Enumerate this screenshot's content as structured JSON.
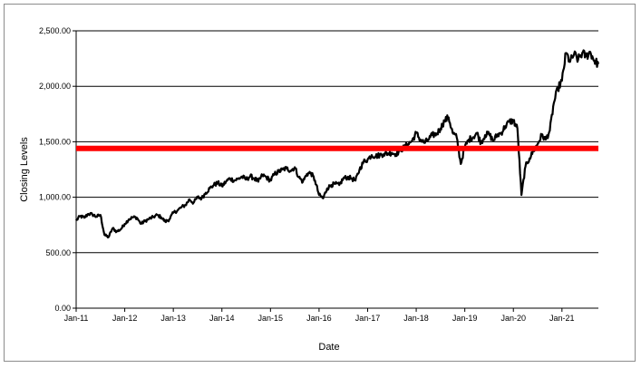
{
  "chart_data": {
    "type": "line",
    "title": "",
    "xlabel": "Date",
    "ylabel": "Closing Levels",
    "ylim": [
      0,
      2500
    ],
    "y_ticks": [
      {
        "value": 0,
        "label": "0.00"
      },
      {
        "value": 500,
        "label": "500.00"
      },
      {
        "value": 1000,
        "label": "1,000.00"
      },
      {
        "value": 1500,
        "label": "1,500.00"
      },
      {
        "value": 2000,
        "label": "2,000.00"
      },
      {
        "value": 2500,
        "label": "2,500.00"
      }
    ],
    "x_ticks": [
      "Jan-11",
      "Jan-12",
      "Jan-13",
      "Jan-14",
      "Jan-15",
      "Jan-16",
      "Jan-17",
      "Jan-18",
      "Jan-19",
      "Jan-20",
      "Jan-21"
    ],
    "x_range": [
      "2011-01",
      "2021-10"
    ],
    "grid": "horizontal",
    "legend": "none",
    "reference_line": {
      "value": 1440,
      "color": "#ff0000"
    },
    "series": [
      {
        "color": "#000000",
        "points": [
          [
            "2011-01",
            790
          ],
          [
            "2011-02",
            830
          ],
          [
            "2011-03",
            815
          ],
          [
            "2011-04",
            850
          ],
          [
            "2011-05",
            845
          ],
          [
            "2011-06",
            825
          ],
          [
            "2011-07",
            840
          ],
          [
            "2011-08",
            660
          ],
          [
            "2011-09",
            640
          ],
          [
            "2011-10",
            720
          ],
          [
            "2011-11",
            690
          ],
          [
            "2011-12",
            710
          ],
          [
            "2012-01",
            760
          ],
          [
            "2012-02",
            800
          ],
          [
            "2012-03",
            820
          ],
          [
            "2012-04",
            815
          ],
          [
            "2012-05",
            760
          ],
          [
            "2012-06",
            785
          ],
          [
            "2012-07",
            805
          ],
          [
            "2012-08",
            820
          ],
          [
            "2012-09",
            840
          ],
          [
            "2012-10",
            820
          ],
          [
            "2012-11",
            780
          ],
          [
            "2012-12",
            800
          ],
          [
            "2013-01",
            860
          ],
          [
            "2013-02",
            880
          ],
          [
            "2013-03",
            910
          ],
          [
            "2013-04",
            930
          ],
          [
            "2013-05",
            980
          ],
          [
            "2013-06",
            950
          ],
          [
            "2013-07",
            1000
          ],
          [
            "2013-08",
            990
          ],
          [
            "2013-09",
            1040
          ],
          [
            "2013-10",
            1080
          ],
          [
            "2013-11",
            1110
          ],
          [
            "2013-12",
            1130
          ],
          [
            "2014-01",
            1100
          ],
          [
            "2014-02",
            1140
          ],
          [
            "2014-03",
            1170
          ],
          [
            "2014-04",
            1150
          ],
          [
            "2014-05",
            1165
          ],
          [
            "2014-06",
            1185
          ],
          [
            "2014-07",
            1160
          ],
          [
            "2014-08",
            1190
          ],
          [
            "2014-09",
            1170
          ],
          [
            "2014-10",
            1140
          ],
          [
            "2014-11",
            1200
          ],
          [
            "2014-12",
            1180
          ],
          [
            "2015-01",
            1150
          ],
          [
            "2015-02",
            1210
          ],
          [
            "2015-03",
            1230
          ],
          [
            "2015-04",
            1250
          ],
          [
            "2015-05",
            1260
          ],
          [
            "2015-06",
            1240
          ],
          [
            "2015-07",
            1270
          ],
          [
            "2015-08",
            1180
          ],
          [
            "2015-09",
            1140
          ],
          [
            "2015-10",
            1210
          ],
          [
            "2015-11",
            1220
          ],
          [
            "2015-12",
            1150
          ],
          [
            "2016-01",
            1020
          ],
          [
            "2016-02",
            990
          ],
          [
            "2016-03",
            1080
          ],
          [
            "2016-04",
            1110
          ],
          [
            "2016-05",
            1120
          ],
          [
            "2016-06",
            1110
          ],
          [
            "2016-07",
            1170
          ],
          [
            "2016-08",
            1180
          ],
          [
            "2016-09",
            1170
          ],
          [
            "2016-10",
            1150
          ],
          [
            "2016-11",
            1250
          ],
          [
            "2016-12",
            1320
          ],
          [
            "2017-01",
            1340
          ],
          [
            "2017-02",
            1380
          ],
          [
            "2017-03",
            1370
          ],
          [
            "2017-04",
            1380
          ],
          [
            "2017-05",
            1390
          ],
          [
            "2017-06",
            1395
          ],
          [
            "2017-07",
            1400
          ],
          [
            "2017-08",
            1390
          ],
          [
            "2017-09",
            1420
          ],
          [
            "2017-10",
            1450
          ],
          [
            "2017-11",
            1480
          ],
          [
            "2017-12",
            1510
          ],
          [
            "2018-01",
            1580
          ],
          [
            "2018-02",
            1520
          ],
          [
            "2018-03",
            1490
          ],
          [
            "2018-04",
            1520
          ],
          [
            "2018-05",
            1560
          ],
          [
            "2018-06",
            1570
          ],
          [
            "2018-07",
            1620
          ],
          [
            "2018-08",
            1690
          ],
          [
            "2018-09",
            1720
          ],
          [
            "2018-10",
            1580
          ],
          [
            "2018-11",
            1540
          ],
          [
            "2018-12",
            1300
          ],
          [
            "2019-01",
            1450
          ],
          [
            "2019-02",
            1520
          ],
          [
            "2019-03",
            1540
          ],
          [
            "2019-04",
            1580
          ],
          [
            "2019-05",
            1490
          ],
          [
            "2019-06",
            1560
          ],
          [
            "2019-07",
            1570
          ],
          [
            "2019-08",
            1510
          ],
          [
            "2019-09",
            1560
          ],
          [
            "2019-10",
            1580
          ],
          [
            "2019-11",
            1640
          ],
          [
            "2019-12",
            1680
          ],
          [
            "2020-01",
            1690
          ],
          [
            "2020-02",
            1620
          ],
          [
            "2020-03",
            1020
          ],
          [
            "2020-04",
            1280
          ],
          [
            "2020-05",
            1350
          ],
          [
            "2020-06",
            1420
          ],
          [
            "2020-07",
            1480
          ],
          [
            "2020-08",
            1560
          ],
          [
            "2020-09",
            1520
          ],
          [
            "2020-10",
            1600
          ],
          [
            "2020-11",
            1850
          ],
          [
            "2020-12",
            1980
          ],
          [
            "2021-01",
            2050
          ],
          [
            "2021-02",
            2300
          ],
          [
            "2021-03",
            2220
          ],
          [
            "2021-04",
            2290
          ],
          [
            "2021-05",
            2240
          ],
          [
            "2021-06",
            2300
          ],
          [
            "2021-07",
            2270
          ],
          [
            "2021-08",
            2310
          ],
          [
            "2021-09",
            2230
          ],
          [
            "2021-10",
            2200
          ]
        ]
      }
    ]
  }
}
